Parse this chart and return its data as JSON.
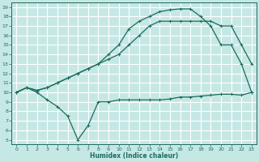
{
  "xlabel": "Humidex (Indice chaleur)",
  "bg_color": "#c5e8e5",
  "line_color": "#1a6b5e",
  "grid_color": "#ffffff",
  "xlim": [
    -0.5,
    23.5
  ],
  "ylim": [
    4.5,
    19.5
  ],
  "xticks": [
    0,
    1,
    2,
    3,
    4,
    5,
    6,
    7,
    8,
    9,
    10,
    11,
    12,
    13,
    14,
    15,
    16,
    17,
    18,
    19,
    20,
    21,
    22,
    23
  ],
  "yticks": [
    5,
    6,
    7,
    8,
    9,
    10,
    11,
    12,
    13,
    14,
    15,
    16,
    17,
    18,
    19
  ],
  "curve_min_x": [
    0,
    1,
    2,
    3,
    4,
    5,
    6,
    7,
    8,
    9,
    10,
    11,
    12,
    13,
    14,
    15,
    16,
    17,
    18,
    19,
    20,
    21,
    22,
    23
  ],
  "curve_min_y": [
    10,
    10.5,
    10,
    9.2,
    8.5,
    7.5,
    5,
    6.5,
    9,
    9.0,
    9.2,
    9.2,
    9.2,
    9.2,
    9.2,
    9.3,
    9.5,
    9.5,
    9.6,
    9.7,
    9.8,
    9.8,
    9.7,
    10
  ],
  "curve_max_x": [
    0,
    1,
    2,
    3,
    4,
    5,
    6,
    7,
    8,
    9,
    10,
    11,
    12,
    13,
    14,
    15,
    16,
    17,
    18,
    19,
    20,
    21,
    22,
    23
  ],
  "curve_max_y": [
    10,
    10.5,
    10.2,
    10.5,
    11,
    11.5,
    12,
    12.5,
    13,
    14,
    15,
    16.7,
    17.5,
    18,
    18.5,
    18.7,
    18.8,
    18.8,
    18,
    17,
    15,
    15,
    13,
    10
  ],
  "curve_mid_x": [
    0,
    1,
    2,
    3,
    4,
    5,
    6,
    7,
    8,
    9,
    10,
    11,
    12,
    13,
    14,
    15,
    16,
    17,
    18,
    19,
    20,
    21,
    22,
    23
  ],
  "curve_mid_y": [
    10,
    10.5,
    10.2,
    10.5,
    11,
    11.5,
    12,
    12.5,
    13,
    13.5,
    14,
    15,
    16,
    17,
    17.5,
    17.5,
    17.5,
    17.5,
    17.5,
    17.5,
    17,
    17,
    15,
    13
  ]
}
